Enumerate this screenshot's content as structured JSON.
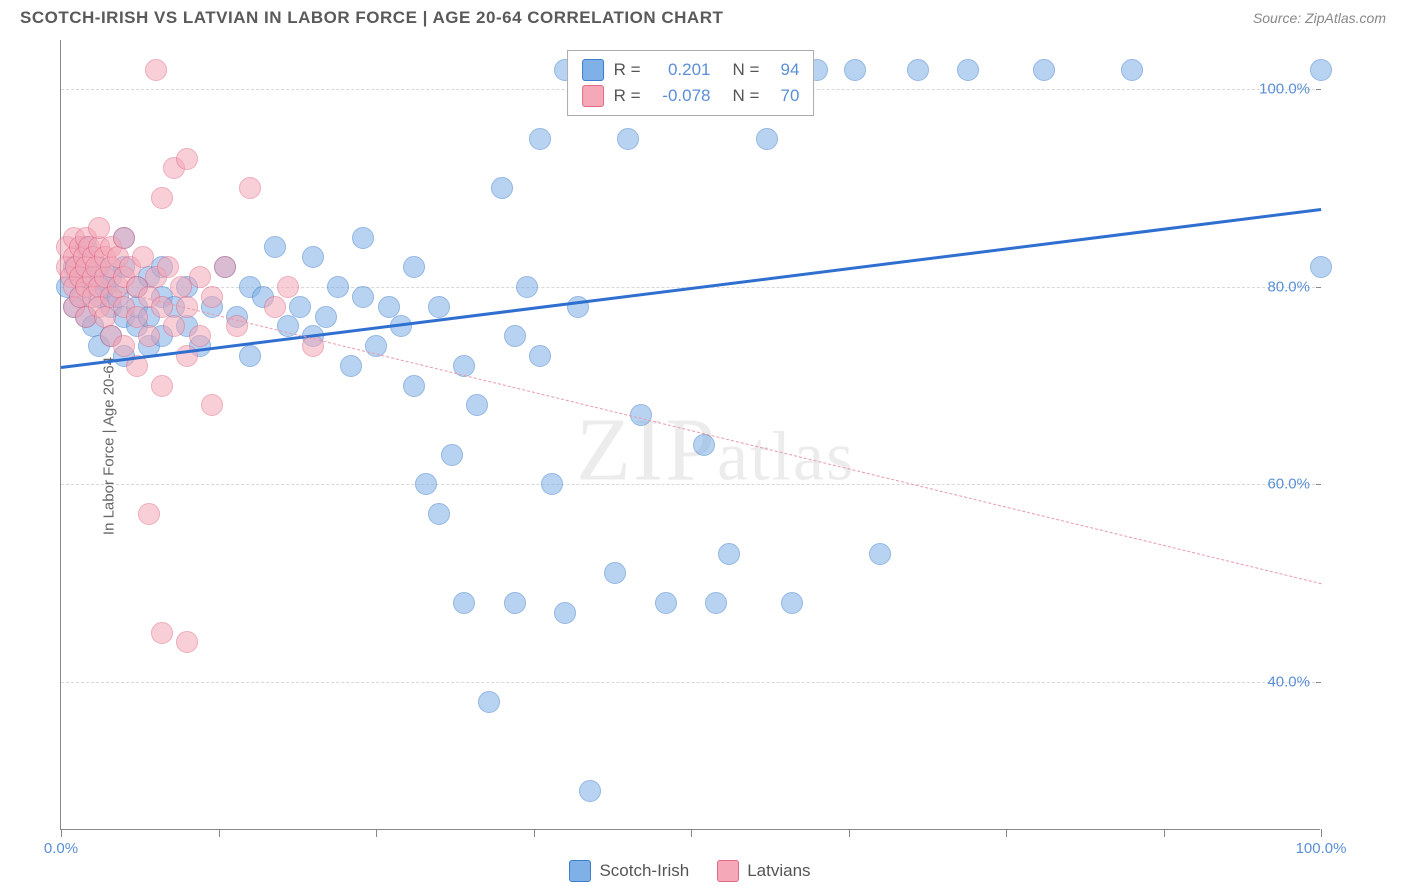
{
  "title": "SCOTCH-IRISH VS LATVIAN IN LABOR FORCE | AGE 20-64 CORRELATION CHART",
  "source": "Source: ZipAtlas.com",
  "y_axis_label": "In Labor Force | Age 20-64",
  "watermark": "ZIPatlas",
  "chart": {
    "type": "scatter",
    "xlim": [
      0,
      100
    ],
    "ylim": [
      25,
      105
    ],
    "x_ticks": [
      0,
      12.5,
      25,
      37.5,
      50,
      62.5,
      75,
      87.5,
      100
    ],
    "x_tick_labels": {
      "0": "0.0%",
      "100": "100.0%"
    },
    "y_gridlines": [
      40,
      60,
      80,
      100
    ],
    "y_tick_labels": {
      "40": "40.0%",
      "60": "60.0%",
      "80": "80.0%",
      "100": "100.0%"
    },
    "background_color": "#ffffff",
    "grid_color": "#d8d8d8",
    "axis_color": "#888888",
    "tick_label_color": "#5a8fd6",
    "marker_radius": 11,
    "marker_opacity": 0.55,
    "series": [
      {
        "name": "Scotch-Irish",
        "fill_color": "#7fb0e8",
        "stroke_color": "#3d7cc9",
        "r": 0.201,
        "n": 94,
        "trendline": {
          "x1": 0,
          "y1": 72,
          "x2": 100,
          "y2": 88,
          "color": "#2f6fd0",
          "width": 3,
          "style": "solid"
        },
        "points": [
          [
            0.5,
            80
          ],
          [
            1,
            78
          ],
          [
            1,
            82
          ],
          [
            1.5,
            79
          ],
          [
            2,
            81
          ],
          [
            2,
            77
          ],
          [
            2,
            84
          ],
          [
            2.5,
            76
          ],
          [
            3,
            79
          ],
          [
            3,
            82
          ],
          [
            3,
            74
          ],
          [
            3.5,
            80
          ],
          [
            4,
            78
          ],
          [
            4,
            81
          ],
          [
            4,
            75
          ],
          [
            4.5,
            79
          ],
          [
            5,
            77
          ],
          [
            5,
            82
          ],
          [
            5,
            73
          ],
          [
            5,
            85
          ],
          [
            6,
            76
          ],
          [
            6,
            80
          ],
          [
            6,
            78
          ],
          [
            7,
            74
          ],
          [
            7,
            81
          ],
          [
            7,
            77
          ],
          [
            8,
            79
          ],
          [
            8,
            75
          ],
          [
            8,
            82
          ],
          [
            9,
            78
          ],
          [
            10,
            76
          ],
          [
            10,
            80
          ],
          [
            11,
            74
          ],
          [
            12,
            78
          ],
          [
            13,
            82
          ],
          [
            14,
            77
          ],
          [
            15,
            73
          ],
          [
            15,
            80
          ],
          [
            16,
            79
          ],
          [
            17,
            84
          ],
          [
            18,
            76
          ],
          [
            19,
            78
          ],
          [
            20,
            83
          ],
          [
            20,
            75
          ],
          [
            21,
            77
          ],
          [
            22,
            80
          ],
          [
            23,
            72
          ],
          [
            24,
            79
          ],
          [
            24,
            85
          ],
          [
            25,
            74
          ],
          [
            26,
            78
          ],
          [
            27,
            76
          ],
          [
            28,
            70
          ],
          [
            28,
            82
          ],
          [
            29,
            60
          ],
          [
            30,
            57
          ],
          [
            30,
            78
          ],
          [
            31,
            63
          ],
          [
            32,
            72
          ],
          [
            32,
            48
          ],
          [
            33,
            68
          ],
          [
            34,
            38
          ],
          [
            35,
            90
          ],
          [
            36,
            48
          ],
          [
            36,
            75
          ],
          [
            37,
            80
          ],
          [
            38,
            95
          ],
          [
            38,
            73
          ],
          [
            39,
            60
          ],
          [
            40,
            47
          ],
          [
            40,
            102
          ],
          [
            41,
            78
          ],
          [
            42,
            29
          ],
          [
            43,
            102
          ],
          [
            44,
            51
          ],
          [
            45,
            95
          ],
          [
            46,
            67
          ],
          [
            48,
            48
          ],
          [
            50,
            102
          ],
          [
            51,
            64
          ],
          [
            52,
            48
          ],
          [
            53,
            53
          ],
          [
            55,
            102
          ],
          [
            56,
            95
          ],
          [
            58,
            48
          ],
          [
            60,
            102
          ],
          [
            63,
            102
          ],
          [
            65,
            53
          ],
          [
            68,
            102
          ],
          [
            72,
            102
          ],
          [
            78,
            102
          ],
          [
            85,
            102
          ],
          [
            100,
            102
          ],
          [
            100,
            82
          ]
        ]
      },
      {
        "name": "Latvians",
        "fill_color": "#f4a8b8",
        "stroke_color": "#e06a85",
        "r": -0.078,
        "n": 70,
        "trendline": {
          "x1": 0,
          "y1": 81,
          "x2": 100,
          "y2": 50,
          "color": "#e89aab",
          "width": 1.5,
          "style": "dashed"
        },
        "points": [
          [
            0.5,
            82
          ],
          [
            0.5,
            84
          ],
          [
            0.8,
            81
          ],
          [
            1,
            83
          ],
          [
            1,
            85
          ],
          [
            1,
            80
          ],
          [
            1,
            78
          ],
          [
            1.2,
            82
          ],
          [
            1.5,
            84
          ],
          [
            1.5,
            81
          ],
          [
            1.5,
            79
          ],
          [
            1.8,
            83
          ],
          [
            2,
            82
          ],
          [
            2,
            85
          ],
          [
            2,
            80
          ],
          [
            2,
            77
          ],
          [
            2.2,
            84
          ],
          [
            2.5,
            81
          ],
          [
            2.5,
            83
          ],
          [
            2.5,
            79
          ],
          [
            2.8,
            82
          ],
          [
            3,
            84
          ],
          [
            3,
            80
          ],
          [
            3,
            78
          ],
          [
            3,
            86
          ],
          [
            3.5,
            81
          ],
          [
            3.5,
            83
          ],
          [
            3.5,
            77
          ],
          [
            4,
            82
          ],
          [
            4,
            84
          ],
          [
            4,
            79
          ],
          [
            4,
            75
          ],
          [
            4.5,
            80
          ],
          [
            4.5,
            83
          ],
          [
            5,
            81
          ],
          [
            5,
            78
          ],
          [
            5,
            85
          ],
          [
            5,
            74
          ],
          [
            5.5,
            82
          ],
          [
            6,
            80
          ],
          [
            6,
            77
          ],
          [
            6,
            72
          ],
          [
            6.5,
            83
          ],
          [
            7,
            79
          ],
          [
            7,
            75
          ],
          [
            7,
            57
          ],
          [
            7.5,
            102
          ],
          [
            7.5,
            81
          ],
          [
            8,
            78
          ],
          [
            8,
            70
          ],
          [
            8,
            89
          ],
          [
            8,
            45
          ],
          [
            8.5,
            82
          ],
          [
            9,
            76
          ],
          [
            9,
            92
          ],
          [
            9.5,
            80
          ],
          [
            10,
            78
          ],
          [
            10,
            93
          ],
          [
            10,
            73
          ],
          [
            10,
            44
          ],
          [
            11,
            81
          ],
          [
            11,
            75
          ],
          [
            12,
            79
          ],
          [
            12,
            68
          ],
          [
            13,
            82
          ],
          [
            14,
            76
          ],
          [
            15,
            90
          ],
          [
            17,
            78
          ],
          [
            18,
            80
          ],
          [
            20,
            74
          ]
        ]
      }
    ]
  },
  "legend_top": {
    "r_label": "R =",
    "n_label": "N ="
  },
  "legend_bottom": {
    "items": [
      "Scotch-Irish",
      "Latvians"
    ]
  }
}
